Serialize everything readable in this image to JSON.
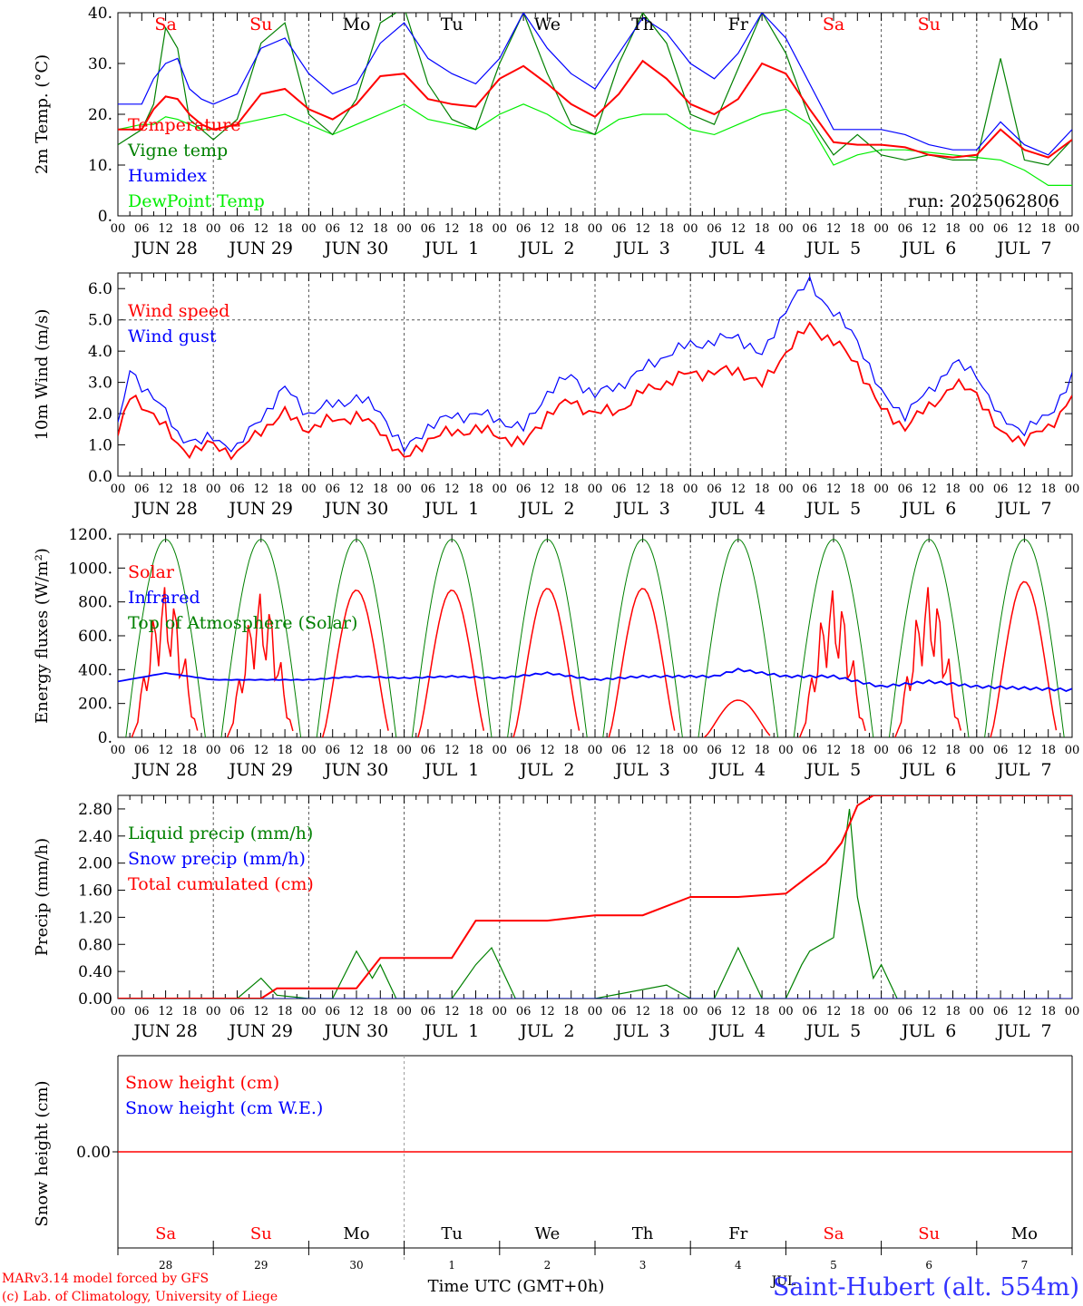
{
  "run_label": "run: 2025062806",
  "hour_ticks": [
    "00",
    "06",
    "12",
    "18"
  ],
  "days": [
    {
      "label": "JUN 28",
      "weekday": "Sa",
      "wcolor": "#ff0000",
      "num": "28"
    },
    {
      "label": "JUN 29",
      "weekday": "Su",
      "wcolor": "#ff0000",
      "num": "29"
    },
    {
      "label": "JUN 30",
      "weekday": "Mo",
      "wcolor": "#000000",
      "num": "30"
    },
    {
      "label": "JUL  1",
      "weekday": "Tu",
      "wcolor": "#000000",
      "num": "1"
    },
    {
      "label": "JUL  2",
      "weekday": "We",
      "wcolor": "#000000",
      "num": "2"
    },
    {
      "label": "JUL  3",
      "weekday": "Th",
      "wcolor": "#000000",
      "num": "3"
    },
    {
      "label": "JUL  4",
      "weekday": "Fr",
      "wcolor": "#000000",
      "num": "4"
    },
    {
      "label": "JUL  5",
      "weekday": "Sa",
      "wcolor": "#ff0000",
      "num": "5"
    },
    {
      "label": "JUL  6",
      "weekday": "Su",
      "wcolor": "#ff0000",
      "num": "6"
    },
    {
      "label": "JUL  7",
      "weekday": "Mo",
      "wcolor": "#000000",
      "num": "7"
    }
  ],
  "footer": {
    "model": "MARv3.14 model forced by GFS",
    "copyright": "(c) Lab. of Climatology, University of Liege",
    "xlabel": "Time UTC (GMT+0h)",
    "location": "Saint-Hubert (alt. 554m)",
    "overlap_text": "JUL"
  },
  "chart_data": [
    {
      "type": "line",
      "ylabel": "2m Temp. (°C)",
      "ylim": [
        0,
        40
      ],
      "yticks": [
        "0.",
        "10.",
        "20.",
        "30.",
        "40."
      ],
      "x_unit": "hours since Jun 28 00 UTC",
      "series": [
        {
          "name": "Temperature",
          "color": "#ff0000",
          "x": [
            0,
            6,
            9,
            12,
            15,
            18,
            21,
            24,
            30,
            36,
            42,
            48,
            54,
            60,
            66,
            72,
            78,
            84,
            90,
            96,
            102,
            108,
            114,
            120,
            126,
            132,
            138,
            144,
            150,
            156,
            162,
            168,
            174,
            180,
            186,
            192,
            198,
            204,
            210,
            216,
            222,
            228,
            234,
            240
          ],
          "y": [
            17,
            17,
            21,
            23.5,
            23,
            20,
            18,
            17,
            18,
            24,
            25,
            21,
            19,
            22,
            27.5,
            28,
            23,
            22,
            21.5,
            27,
            29.5,
            26,
            22,
            19.5,
            24,
            30.5,
            27,
            22,
            20,
            23,
            30,
            28,
            21,
            14.5,
            14,
            14,
            13.5,
            12,
            11.5,
            12,
            17,
            13,
            11.5,
            15
          ]
        },
        {
          "name": "Vigne temp",
          "color": "#008000",
          "x": [
            0,
            6,
            9,
            12,
            15,
            18,
            21,
            24,
            30,
            36,
            42,
            48,
            54,
            60,
            66,
            72,
            78,
            84,
            90,
            96,
            102,
            108,
            114,
            120,
            126,
            132,
            138,
            144,
            150,
            156,
            162,
            168,
            174,
            180,
            186,
            192,
            198,
            204,
            210,
            216,
            222,
            228,
            234,
            240
          ],
          "y": [
            14,
            17,
            22,
            37,
            33,
            19,
            17,
            15,
            19,
            34,
            38,
            20,
            16,
            23,
            38,
            41,
            26,
            19,
            17,
            30,
            40,
            28,
            18,
            16,
            30,
            40,
            34,
            20,
            18,
            29,
            40,
            32,
            19,
            12,
            16,
            12,
            11,
            12,
            11,
            11,
            31,
            11,
            10,
            15
          ]
        },
        {
          "name": "Humidex",
          "color": "#0000ff",
          "x": [
            0,
            6,
            9,
            12,
            15,
            18,
            21,
            24,
            30,
            36,
            42,
            48,
            54,
            60,
            66,
            72,
            78,
            84,
            90,
            96,
            102,
            108,
            114,
            120,
            126,
            132,
            138,
            144,
            150,
            156,
            162,
            168,
            174,
            180,
            186,
            192,
            198,
            204,
            210,
            216,
            222,
            228,
            234,
            240
          ],
          "y": [
            22,
            22,
            27,
            30,
            31,
            25,
            23,
            22,
            24,
            33,
            35,
            28,
            24,
            26,
            34,
            38,
            31,
            28,
            26,
            31,
            40,
            33,
            28,
            25,
            32,
            39,
            36,
            30,
            27,
            32,
            40,
            35,
            26,
            17,
            17,
            17,
            16,
            14,
            13,
            13,
            18.5,
            14,
            12,
            17
          ]
        },
        {
          "name": "DewPoint Temp",
          "color": "#00ee00",
          "x": [
            0,
            6,
            9,
            12,
            15,
            18,
            21,
            24,
            30,
            36,
            42,
            48,
            54,
            60,
            66,
            72,
            78,
            84,
            90,
            96,
            102,
            108,
            114,
            120,
            126,
            132,
            138,
            144,
            150,
            156,
            162,
            168,
            174,
            180,
            186,
            192,
            198,
            204,
            210,
            216,
            222,
            228,
            234,
            240
          ],
          "y": [
            17,
            18,
            18,
            19.5,
            19,
            18,
            17,
            17,
            18,
            19,
            20,
            18,
            16,
            18,
            20,
            22,
            19,
            18,
            17,
            20,
            22,
            20,
            17,
            16,
            19,
            20,
            20,
            17,
            16,
            18,
            20,
            21,
            18,
            10,
            12,
            13,
            13,
            12.5,
            12,
            11.5,
            11,
            9,
            6,
            6
          ]
        }
      ]
    },
    {
      "type": "line",
      "ylabel": "10m Wind (m/s)",
      "ylim": [
        0,
        6.5
      ],
      "yticks": [
        "0.0",
        "1.0",
        "2.0",
        "3.0",
        "4.0",
        "5.0",
        "6.0"
      ],
      "reference_line": 5.0,
      "series": [
        {
          "name": "Wind speed",
          "color": "#ff0000",
          "x": [
            0,
            3,
            6,
            9,
            12,
            15,
            18,
            21,
            24,
            30,
            36,
            42,
            48,
            54,
            60,
            66,
            72,
            78,
            84,
            90,
            96,
            102,
            108,
            114,
            120,
            126,
            132,
            138,
            144,
            150,
            156,
            162,
            168,
            174,
            180,
            186,
            192,
            198,
            204,
            210,
            216,
            222,
            228,
            234,
            240
          ],
          "y": [
            1.3,
            2.5,
            2.3,
            2.0,
            1.5,
            1.0,
            0.8,
            0.9,
            1.0,
            0.7,
            1.5,
            2.0,
            1.5,
            1.8,
            1.9,
            1.5,
            0.5,
            1.2,
            1.4,
            1.5,
            1.3,
            1.0,
            2.0,
            2.4,
            2.0,
            2.1,
            2.7,
            3.0,
            3.3,
            3.3,
            3.4,
            2.9,
            4.0,
            4.8,
            4.3,
            3.6,
            2.1,
            1.6,
            2.2,
            2.9,
            2.7,
            1.3,
            1.2,
            1.5,
            2.6
          ]
        },
        {
          "name": "Wind gust",
          "color": "#0000ff",
          "x": [
            0,
            3,
            6,
            9,
            12,
            15,
            18,
            21,
            24,
            30,
            36,
            42,
            48,
            54,
            60,
            66,
            72,
            78,
            84,
            90,
            96,
            102,
            108,
            114,
            120,
            126,
            132,
            138,
            144,
            150,
            156,
            162,
            168,
            174,
            180,
            186,
            192,
            198,
            204,
            210,
            216,
            222,
            228,
            234,
            240
          ],
          "y": [
            1.6,
            3.3,
            2.9,
            2.6,
            2.0,
            1.3,
            1.2,
            1.1,
            1.2,
            0.9,
            1.9,
            2.8,
            2.0,
            2.3,
            2.5,
            2.1,
            0.8,
            1.6,
            1.9,
            2.0,
            1.8,
            1.5,
            2.7,
            3.2,
            2.6,
            2.9,
            3.4,
            3.9,
            4.2,
            4.3,
            4.5,
            3.8,
            5.4,
            6.2,
            5.2,
            4.4,
            2.6,
            2.0,
            2.7,
            3.6,
            3.3,
            1.8,
            1.5,
            1.9,
            3.2
          ]
        }
      ]
    },
    {
      "type": "line",
      "ylabel": "Energy fluxes (W/m²)",
      "ylim": [
        0,
        1200
      ],
      "yticks": [
        "0.",
        "200.",
        "400.",
        "600.",
        "800.",
        "1000.",
        "1200."
      ],
      "series": [
        {
          "name": "Solar",
          "color": "#ff0000",
          "daily_peak": [
            900,
            860,
            870,
            870,
            880,
            880,
            220,
            880,
            900,
            920
          ]
        },
        {
          "name": "Infrared",
          "color": "#0000ff",
          "x": [
            0,
            12,
            24,
            48,
            60,
            72,
            84,
            96,
            108,
            120,
            132,
            144,
            150,
            156,
            168,
            180,
            192,
            204,
            216,
            240
          ],
          "y": [
            330,
            380,
            340,
            340,
            360,
            350,
            360,
            350,
            380,
            340,
            360,
            360,
            360,
            400,
            360,
            360,
            300,
            330,
            300,
            280
          ]
        },
        {
          "name": "Top of Atmosphere (Solar)",
          "color": "#008000",
          "daily_peak": [
            1170,
            1170,
            1170,
            1170,
            1170,
            1170,
            1170,
            1170,
            1170,
            1170
          ]
        }
      ]
    },
    {
      "type": "line",
      "ylabel": "Precip (mm/h)",
      "ylim": [
        0,
        3.0
      ],
      "yticks": [
        "0.00",
        "0.40",
        "0.80",
        "1.20",
        "1.60",
        "2.00",
        "2.40",
        "2.80"
      ],
      "series": [
        {
          "name": "Liquid precip (mm/h)",
          "color": "#008000",
          "x": [
            0,
            6,
            12,
            18,
            30,
            36,
            40,
            48,
            54,
            60,
            64,
            66,
            70,
            72,
            84,
            90,
            94,
            96,
            100,
            108,
            114,
            120,
            138,
            144,
            150,
            156,
            162,
            168,
            172,
            174,
            180,
            184,
            186,
            190,
            192,
            196,
            200,
            204
          ],
          "y": [
            0,
            0,
            0,
            0,
            0,
            0.3,
            0.05,
            0,
            0,
            0.7,
            0.3,
            0.5,
            0,
            0,
            0,
            0.5,
            0.75,
            0.5,
            0,
            0,
            0,
            0,
            0.2,
            0,
            0,
            0.75,
            0,
            0,
            0.5,
            0.7,
            0.9,
            2.8,
            1.5,
            0.3,
            0.5,
            0,
            0,
            0
          ]
        },
        {
          "name": "Snow precip (mm/h)",
          "color": "#0000ff",
          "x": [
            0,
            240
          ],
          "y": [
            0,
            0
          ]
        },
        {
          "name": "Total cumulated (cm)",
          "color": "#ff0000",
          "x": [
            0,
            36,
            40,
            48,
            60,
            66,
            72,
            84,
            90,
            96,
            108,
            120,
            132,
            144,
            156,
            168,
            178,
            182,
            186,
            190,
            240
          ],
          "y": [
            0,
            0,
            0.15,
            0.15,
            0.15,
            0.6,
            0.6,
            0.6,
            1.15,
            1.15,
            1.15,
            1.23,
            1.23,
            1.5,
            1.5,
            1.55,
            2.0,
            2.3,
            2.85,
            3.0,
            3.0
          ]
        }
      ]
    },
    {
      "type": "line",
      "ylabel": "Snow height (cm)",
      "yticks": [
        "0.00"
      ],
      "series": [
        {
          "name": "Snow height (cm)",
          "color": "#ff0000",
          "x": [
            0,
            240
          ],
          "y": [
            0,
            0
          ]
        },
        {
          "name": "Snow height (cm W.E.)",
          "color": "#0000ff",
          "x": [
            0,
            240
          ],
          "y": [
            0,
            0
          ]
        }
      ]
    }
  ]
}
